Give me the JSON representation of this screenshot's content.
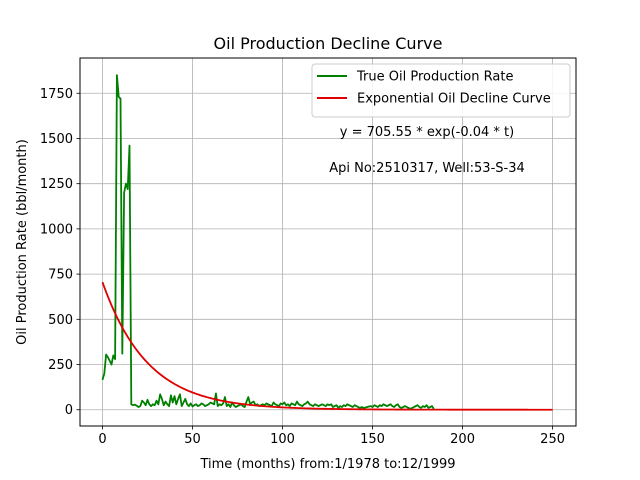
{
  "chart_data": {
    "type": "line",
    "title": "Oil Production Decline Curve",
    "xlabel": "Time (months) from:1/1978 to:12/1999",
    "ylabel": "Oil Production Rate (bbl/month)",
    "xlim": [
      -12.5,
      263
    ],
    "ylim": [
      -90,
      1945
    ],
    "xticks": [
      0,
      50,
      100,
      150,
      200,
      250
    ],
    "yticks": [
      0,
      250,
      500,
      750,
      1000,
      1250,
      1500,
      1750
    ],
    "grid": true,
    "legend_position": "top-right",
    "annotations": [
      "y = 705.55 * exp(-0.04 * t)",
      "Api No:2510317, Well:53-S-34"
    ],
    "series": [
      {
        "name": "True Oil Production Rate",
        "color": "#008000",
        "points": [
          [
            0,
            165
          ],
          [
            1,
            200
          ],
          [
            2,
            305
          ],
          [
            3,
            290
          ],
          [
            4,
            270
          ],
          [
            5,
            250
          ],
          [
            6,
            300
          ],
          [
            7,
            280
          ],
          [
            8,
            1850
          ],
          [
            9,
            1730
          ],
          [
            10,
            1720
          ],
          [
            11,
            310
          ],
          [
            12,
            1200
          ],
          [
            13,
            1250
          ],
          [
            14,
            1220
          ],
          [
            15,
            1460
          ],
          [
            16,
            30
          ],
          [
            17,
            25
          ],
          [
            18,
            28
          ],
          [
            19,
            22
          ],
          [
            20,
            15
          ],
          [
            21,
            20
          ],
          [
            22,
            50
          ],
          [
            23,
            40
          ],
          [
            24,
            25
          ],
          [
            25,
            55
          ],
          [
            26,
            30
          ],
          [
            27,
            20
          ],
          [
            28,
            30
          ],
          [
            29,
            25
          ],
          [
            30,
            50
          ],
          [
            31,
            30
          ],
          [
            32,
            85
          ],
          [
            33,
            60
          ],
          [
            34,
            25
          ],
          [
            35,
            45
          ],
          [
            36,
            30
          ],
          [
            37,
            20
          ],
          [
            38,
            80
          ],
          [
            39,
            40
          ],
          [
            40,
            75
          ],
          [
            41,
            30
          ],
          [
            42,
            60
          ],
          [
            43,
            85
          ],
          [
            44,
            20
          ],
          [
            45,
            40
          ],
          [
            46,
            60
          ],
          [
            47,
            30
          ],
          [
            48,
            20
          ],
          [
            49,
            35
          ],
          [
            50,
            18
          ],
          [
            51,
            25
          ],
          [
            52,
            30
          ],
          [
            53,
            20
          ],
          [
            54,
            25
          ],
          [
            55,
            35
          ],
          [
            56,
            30
          ],
          [
            57,
            20
          ],
          [
            58,
            25
          ],
          [
            59,
            30
          ],
          [
            60,
            40
          ],
          [
            61,
            35
          ],
          [
            62,
            30
          ],
          [
            63,
            90
          ],
          [
            64,
            20
          ],
          [
            65,
            30
          ],
          [
            66,
            25
          ],
          [
            67,
            35
          ],
          [
            68,
            70
          ],
          [
            69,
            20
          ],
          [
            70,
            30
          ],
          [
            71,
            15
          ],
          [
            72,
            40
          ],
          [
            73,
            25
          ],
          [
            74,
            15
          ],
          [
            75,
            20
          ],
          [
            76,
            25
          ],
          [
            77,
            30
          ],
          [
            78,
            20
          ],
          [
            79,
            15
          ],
          [
            80,
            45
          ],
          [
            81,
            70
          ],
          [
            82,
            30
          ],
          [
            83,
            40
          ],
          [
            84,
            45
          ],
          [
            85,
            25
          ],
          [
            86,
            30
          ],
          [
            87,
            20
          ],
          [
            88,
            25
          ],
          [
            89,
            30
          ],
          [
            90,
            25
          ],
          [
            91,
            35
          ],
          [
            92,
            30
          ],
          [
            93,
            25
          ],
          [
            94,
            20
          ],
          [
            95,
            40
          ],
          [
            96,
            30
          ],
          [
            97,
            25
          ],
          [
            98,
            20
          ],
          [
            99,
            35
          ],
          [
            100,
            30
          ],
          [
            101,
            40
          ],
          [
            102,
            25
          ],
          [
            103,
            30
          ],
          [
            104,
            20
          ],
          [
            105,
            35
          ],
          [
            106,
            30
          ],
          [
            107,
            25
          ],
          [
            108,
            45
          ],
          [
            109,
            30
          ],
          [
            110,
            25
          ],
          [
            111,
            20
          ],
          [
            112,
            30
          ],
          [
            113,
            35
          ],
          [
            114,
            45
          ],
          [
            115,
            30
          ],
          [
            116,
            25
          ],
          [
            117,
            20
          ],
          [
            118,
            30
          ],
          [
            119,
            25
          ],
          [
            120,
            20
          ],
          [
            121,
            25
          ],
          [
            122,
            30
          ],
          [
            123,
            25
          ],
          [
            124,
            20
          ],
          [
            125,
            30
          ],
          [
            126,
            25
          ],
          [
            127,
            30
          ],
          [
            128,
            15
          ],
          [
            129,
            20
          ],
          [
            130,
            25
          ],
          [
            131,
            10
          ],
          [
            132,
            20
          ],
          [
            133,
            15
          ],
          [
            134,
            25
          ],
          [
            135,
            20
          ],
          [
            136,
            30
          ],
          [
            137,
            25
          ],
          [
            138,
            20
          ],
          [
            139,
            15
          ],
          [
            140,
            25
          ],
          [
            141,
            20
          ],
          [
            142,
            15
          ],
          [
            143,
            10
          ],
          [
            144,
            15
          ],
          [
            145,
            10
          ],
          [
            146,
            12
          ],
          [
            147,
            15
          ],
          [
            148,
            18
          ],
          [
            149,
            20
          ],
          [
            150,
            15
          ],
          [
            151,
            25
          ],
          [
            152,
            20
          ],
          [
            153,
            15
          ],
          [
            154,
            25
          ],
          [
            155,
            20
          ],
          [
            156,
            30
          ],
          [
            157,
            25
          ],
          [
            158,
            20
          ],
          [
            159,
            25
          ],
          [
            160,
            30
          ],
          [
            161,
            20
          ],
          [
            162,
            15
          ],
          [
            163,
            25
          ],
          [
            164,
            30
          ],
          [
            165,
            15
          ],
          [
            166,
            10
          ],
          [
            167,
            15
          ],
          [
            168,
            20
          ],
          [
            169,
            15
          ],
          [
            170,
            10
          ],
          [
            171,
            5
          ],
          [
            172,
            10
          ],
          [
            173,
            15
          ],
          [
            174,
            20
          ],
          [
            175,
            25
          ],
          [
            176,
            15
          ],
          [
            177,
            10
          ],
          [
            178,
            20
          ],
          [
            179,
            15
          ],
          [
            180,
            25
          ],
          [
            181,
            10
          ],
          [
            182,
            15
          ],
          [
            183,
            20
          ],
          [
            184,
            5
          ]
        ]
      },
      {
        "name": "Exponential Oil Decline Curve",
        "color": "#e00000",
        "model": {
          "a": 705.55,
          "b": 0.04,
          "t_start": 0,
          "t_end": 250
        }
      }
    ]
  }
}
